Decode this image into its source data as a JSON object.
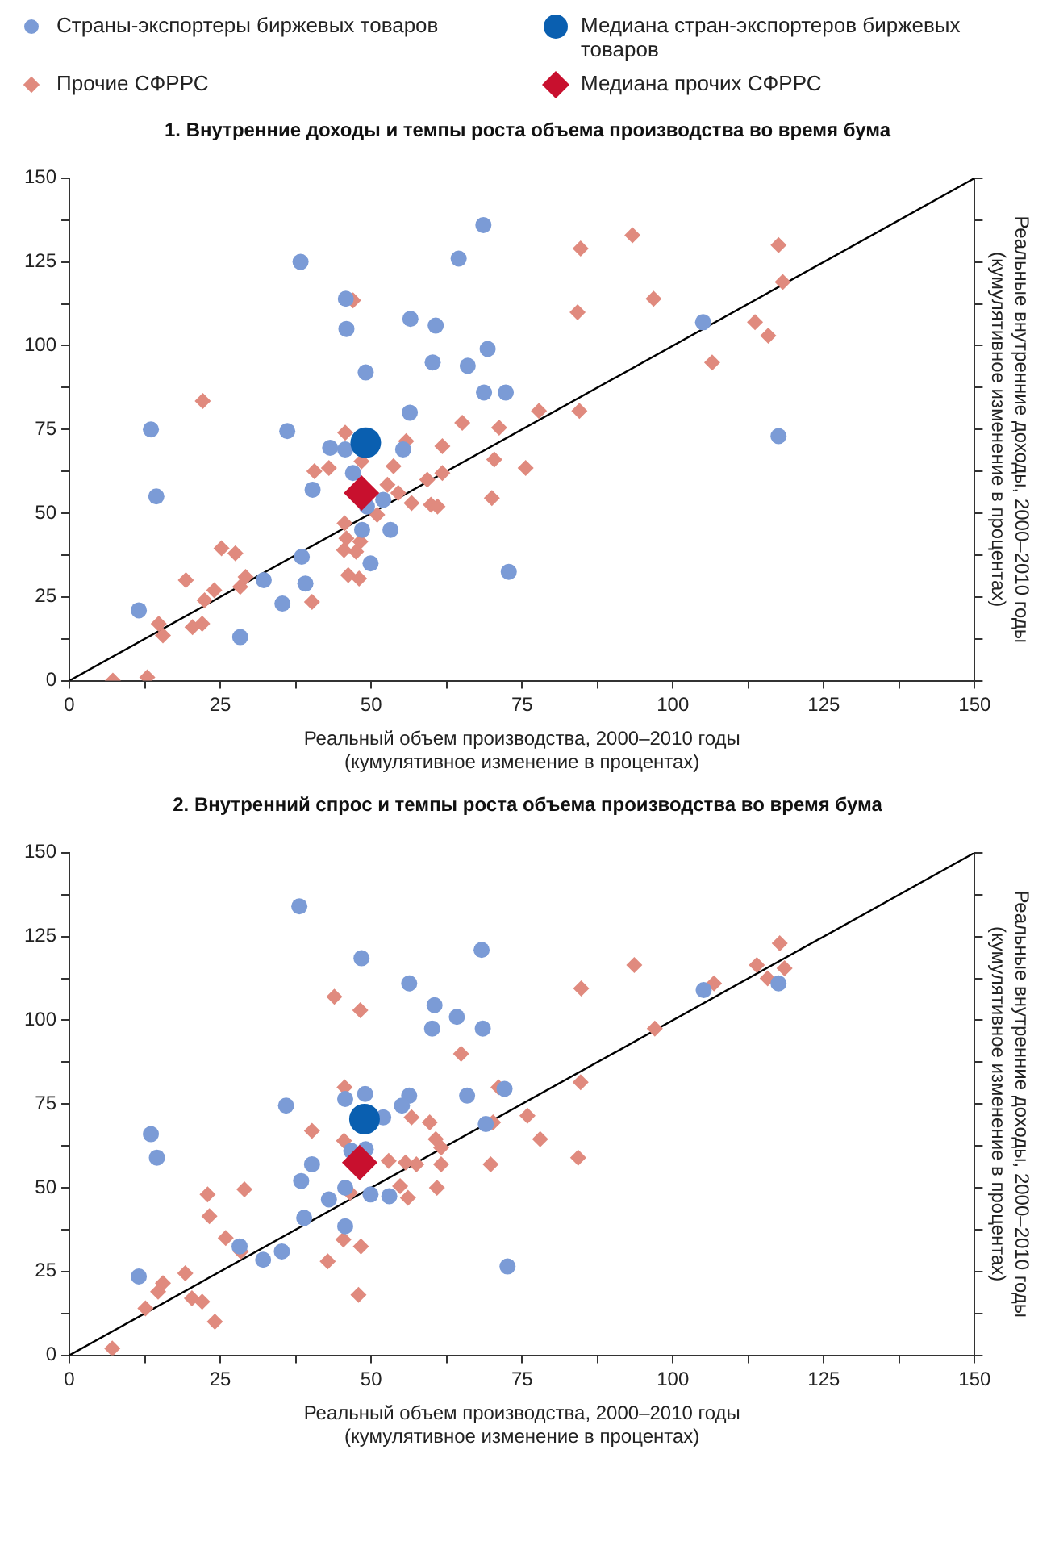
{
  "chart_data": [
    {
      "type": "scatter",
      "title": "1. Внутренние доходы и темпы роста объема производства во время бума",
      "xlabel": "Реальный объем производства, 2000–2010 годы\n(кумулятивное изменение в процентах)",
      "ylabel": "Реальные внутренние доходы, 2000–2010 годы\n(кумулятивное изменение в процентах)",
      "legend": "top",
      "xlim": [
        0,
        150
      ],
      "ylim": [
        0,
        150
      ],
      "xticks": [
        0,
        {
          "value": 12.5,
          "label": null
        },
        25,
        {
          "value": 37.5,
          "label": null
        },
        50,
        {
          "value": 62.5,
          "label": null
        },
        75,
        {
          "value": 87.5,
          "label": null
        },
        100,
        {
          "value": 112.5,
          "label": null
        },
        125,
        {
          "value": 137.5,
          "label": null
        },
        150
      ],
      "yticks": [
        0,
        {
          "value": 12.5,
          "label": null
        },
        25,
        {
          "value": 37.5,
          "label": null
        },
        50,
        {
          "value": 62.5,
          "label": null
        },
        75,
        {
          "value": 87.5,
          "label": null
        },
        100,
        {
          "value": 112.5,
          "label": null
        },
        125,
        {
          "value": 137.5,
          "label": null
        },
        150
      ],
      "series": [
        {
          "type": "line",
          "color": "#000000",
          "marker": "none",
          "x": [
            0,
            150
          ],
          "values": [
            0,
            150
          ]
        },
        {
          "name": "Страны-экспортеры биржевых товаров",
          "color": "#7b9bd6",
          "marker": "circle",
          "x": [
            68.6,
            64.5,
            38.3,
            45.8,
            45.9,
            56.5,
            60.7,
            69.3,
            60.2,
            66.0,
            49.1,
            68.7,
            72.3,
            56.4,
            13.5,
            36.1,
            43.2,
            45.7,
            55.3,
            47.0,
            40.3,
            14.4,
            52.0,
            49.3,
            48.5,
            53.2,
            38.5,
            49.9,
            32.2,
            39.1,
            35.3,
            11.5,
            28.3,
            72.8,
            105,
            117.5
          ],
          "values": [
            136,
            126,
            125,
            114,
            105,
            108,
            106,
            99,
            95,
            94,
            92,
            86,
            86,
            80,
            75,
            74.5,
            69.5,
            69,
            69,
            62,
            57,
            55,
            54,
            52,
            45,
            45,
            37,
            35,
            30,
            29,
            23,
            21,
            13,
            32.5,
            107,
            73
          ]
        },
        {
          "name": "Прочие СФРРС",
          "color": "#e08a7e",
          "marker": "diamond",
          "x": [
            47.0,
            22.1,
            65.1,
            71.2,
            45.7,
            55.8,
            61.8,
            40.6,
            43.0,
            48.4,
            53.7,
            70.4,
            59.3,
            61.8,
            52.7,
            54.5,
            56.7,
            59.9,
            61.0,
            70.0,
            51.0,
            45.6,
            45.9,
            48.2,
            45.5,
            47.5,
            25.2,
            27.5,
            19.3,
            29.2,
            28.3,
            24.0,
            22.4,
            46.2,
            48.0,
            40.2,
            14.8,
            15.5,
            20.4,
            22.0,
            7.2,
            12.9,
            84.7,
            93.3,
            117.5,
            96.8,
            84.2,
            118.2,
            113.6,
            115.8,
            106.5,
            77.8,
            84.5,
            75.6
          ],
          "values": [
            113.5,
            83.5,
            77,
            75.5,
            74,
            71.5,
            70,
            62.5,
            63.5,
            65.5,
            64,
            66,
            60,
            62,
            58.5,
            56,
            53,
            52.5,
            52,
            54.5,
            49.5,
            47,
            42.5,
            41.5,
            39,
            38.5,
            39.5,
            38,
            30,
            31,
            28,
            27,
            24,
            31.5,
            30.5,
            23.5,
            17,
            13.5,
            16,
            17,
            0,
            1,
            129,
            133,
            130,
            114,
            110,
            119,
            107,
            103,
            95,
            80.5,
            80.5,
            63.5
          ]
        },
        {
          "name": "Медиана стран-экспортеров биржевых товаров",
          "color": "#0a5fb0",
          "marker": "circle",
          "x": [
            49.1
          ],
          "values": [
            71
          ]
        },
        {
          "name": "Медиана прочих СФРРС",
          "color": "#c8102e",
          "marker": "diamond",
          "x": [
            48.4
          ],
          "values": [
            56
          ]
        }
      ]
    },
    {
      "type": "scatter",
      "title": "2. Внутренний спрос и темпы роста объема производства во время бума",
      "xlabel": "Реальный объем производства, 2000–2010 годы\n(кумулятивное изменение в процентах)",
      "ylabel": "Реальные внутренние доходы, 2000–2010 годы\n(кумулятивное изменение в процентах)",
      "xlim": [
        0,
        150
      ],
      "ylim": [
        0,
        150
      ],
      "xticks": [
        0,
        {
          "value": 12.5,
          "label": null
        },
        25,
        {
          "value": 37.5,
          "label": null
        },
        50,
        {
          "value": 62.5,
          "label": null
        },
        75,
        {
          "value": 87.5,
          "label": null
        },
        100,
        {
          "value": 112.5,
          "label": null
        },
        125,
        {
          "value": 137.5,
          "label": null
        },
        150
      ],
      "yticks": [
        0,
        {
          "value": 12.5,
          "label": null
        },
        25,
        {
          "value": 37.5,
          "label": null
        },
        50,
        {
          "value": 62.5,
          "label": null
        },
        75,
        {
          "value": 87.5,
          "label": null
        },
        100,
        {
          "value": 112.5,
          "label": null
        },
        125,
        {
          "value": 137.5,
          "label": null
        },
        150
      ],
      "series": [
        {
          "type": "line",
          "color": "#000000",
          "marker": "none",
          "x": [
            0,
            150
          ],
          "values": [
            0,
            150
          ]
        },
        {
          "color": "#7b9bd6",
          "marker": "circle",
          "x": [
            38.1,
            48.4,
            68.3,
            56.3,
            60.5,
            64.2,
            60.1,
            68.5,
            72.1,
            35.9,
            45.7,
            49.0,
            56.3,
            55.1,
            65.9,
            52.0,
            69.0,
            13.5,
            14.5,
            46.7,
            49.1,
            40.2,
            38.4,
            45.7,
            43.0,
            49.9,
            53.0,
            38.9,
            45.7,
            28.2,
            35.2,
            32.1,
            11.5,
            72.6,
            105.1,
            117.5
          ],
          "values": [
            134,
            118.5,
            121,
            111,
            104.5,
            101,
            97.5,
            97.5,
            79.5,
            74.5,
            76.5,
            78,
            77.5,
            74.5,
            77.5,
            71,
            69,
            66,
            59,
            61,
            61.5,
            57,
            52,
            50,
            46.5,
            48,
            47.5,
            41,
            38.5,
            32.5,
            31,
            28.5,
            23.5,
            26.5,
            109,
            111
          ]
        },
        {
          "color": "#e08a7e",
          "marker": "diamond",
          "x": [
            43.9,
            48.2,
            64.9,
            45.6,
            71.1,
            40.2,
            56.7,
            59.7,
            60.7,
            61.6,
            61.6,
            69.8,
            45.5,
            52.9,
            55.7,
            57.5,
            54.8,
            56.1,
            60.9,
            46.5,
            22.9,
            29.0,
            23.2,
            25.9,
            28.4,
            45.4,
            48.3,
            42.8,
            19.2,
            15.5,
            14.7,
            20.3,
            22.0,
            12.6,
            24.1,
            47.9,
            7.1,
            84.8,
            93.6,
            106.8,
            113.9,
            115.7,
            117.7,
            118.5,
            97.0,
            84.7,
            70.2,
            75.9,
            78.0,
            84.3
          ],
          "values": [
            107,
            103,
            90,
            80,
            80,
            67,
            71,
            69.5,
            64.5,
            62,
            57,
            57,
            64,
            58,
            57.5,
            57,
            50.5,
            47,
            50,
            48.5,
            48,
            49.5,
            41.5,
            35,
            31,
            34.5,
            32.5,
            28,
            24.5,
            21.5,
            19,
            17,
            16,
            14,
            10,
            18,
            2,
            109.5,
            116.5,
            111,
            116.5,
            112.5,
            123,
            115.5,
            97.5,
            81.5,
            69.5,
            71.5,
            64.5,
            59
          ]
        },
        {
          "color": "#0a5fb0",
          "marker": "circle",
          "x": [
            48.9
          ],
          "values": [
            70.5
          ]
        },
        {
          "color": "#c8102e",
          "marker": "diamond",
          "x": [
            48.1
          ],
          "values": [
            57.5
          ]
        }
      ]
    }
  ]
}
